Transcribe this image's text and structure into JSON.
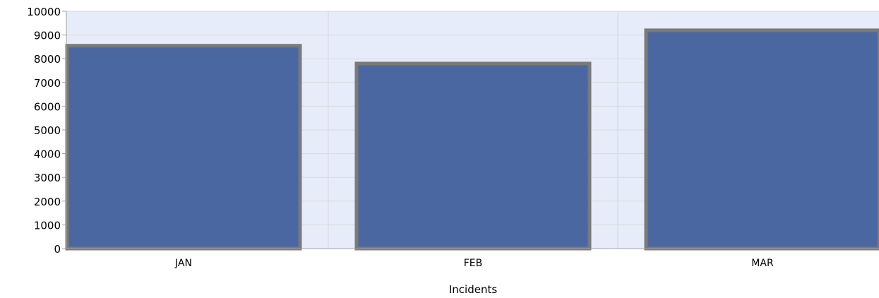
{
  "chart_data": {
    "type": "bar",
    "title": "",
    "xlabel": "Incidents",
    "ylabel": "",
    "categories": [
      "JAN",
      "FEB",
      "MAR"
    ],
    "series": [
      {
        "values": [
          8550,
          7800,
          9200
        ]
      }
    ],
    "ylim": [
      0,
      10000
    ],
    "yticks": [
      "0",
      "1000",
      "2000",
      "3000",
      "4000",
      "5000",
      "6000",
      "7000",
      "8000",
      "9000",
      "10000"
    ],
    "grid": true,
    "legend": "none",
    "colors": {
      "bar_fill": "#4a67a1",
      "bar_border": "#7a7a7a",
      "plot_background": "#e6ecf9",
      "grid": "#d9d9d9",
      "axis": "#a0a0a0"
    }
  }
}
